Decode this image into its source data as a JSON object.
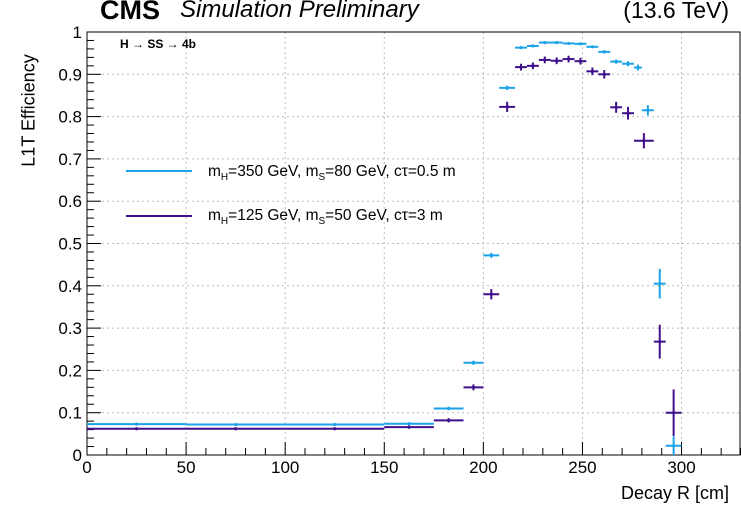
{
  "header": {
    "experiment": "CMS",
    "status": "Simulation Preliminary",
    "energy": "(13.6 TeV)",
    "process": "H → SS → 4b"
  },
  "legend": {
    "entry1": {
      "p1": "m",
      "s1": "H",
      "p2": "=350 GeV, m",
      "s2": "S",
      "p3": "=80 GeV, cτ=0.5 m"
    },
    "entry2": {
      "p1": "m",
      "s1": "H",
      "p2": "=125 GeV, m",
      "s2": "S",
      "p3": "=50 GeV, cτ=3 m"
    }
  },
  "colors": {
    "series1": "#1aa3e8",
    "series2": "#3f0f8c"
  },
  "chart_data": {
    "type": "scatter",
    "xlabel": "Decay R [cm]",
    "ylabel": "L1T Efficiency",
    "xlim": [
      0,
      330
    ],
    "ylim": [
      0,
      1
    ],
    "xticks": [
      0,
      50,
      100,
      150,
      200,
      250,
      300
    ],
    "yticks": [
      0,
      0.1,
      0.2,
      0.3,
      0.4,
      0.5,
      0.6,
      0.7,
      0.8,
      0.9,
      1
    ],
    "ytick_labels": [
      "0",
      "0.1",
      "0.2",
      "0.3",
      "0.4",
      "0.5",
      "0.6",
      "0.7",
      "0.8",
      "0.9",
      "1"
    ],
    "grid": true,
    "series": [
      {
        "points": [
          {
            "x0": 0,
            "x1": 50,
            "y": 0.073,
            "e": 0.003
          },
          {
            "x0": 50,
            "x1": 100,
            "y": 0.072,
            "e": 0.003
          },
          {
            "x0": 100,
            "x1": 150,
            "y": 0.072,
            "e": 0.003
          },
          {
            "x0": 150,
            "x1": 175,
            "y": 0.074,
            "e": 0.003
          },
          {
            "x0": 175,
            "x1": 190,
            "y": 0.11,
            "e": 0.004
          },
          {
            "x0": 190,
            "x1": 200,
            "y": 0.218,
            "e": 0.005
          },
          {
            "x0": 200,
            "x1": 208,
            "y": 0.472,
            "e": 0.006
          },
          {
            "x0": 208,
            "x1": 216,
            "y": 0.868,
            "e": 0.005
          },
          {
            "x0": 216,
            "x1": 222,
            "y": 0.963,
            "e": 0.003
          },
          {
            "x0": 222,
            "x1": 228,
            "y": 0.967,
            "e": 0.003
          },
          {
            "x0": 228,
            "x1": 234,
            "y": 0.975,
            "e": 0.003
          },
          {
            "x0": 234,
            "x1": 240,
            "y": 0.975,
            "e": 0.003
          },
          {
            "x0": 240,
            "x1": 246,
            "y": 0.973,
            "e": 0.003
          },
          {
            "x0": 246,
            "x1": 252,
            "y": 0.972,
            "e": 0.003
          },
          {
            "x0": 252,
            "x1": 258,
            "y": 0.965,
            "e": 0.003
          },
          {
            "x0": 258,
            "x1": 264,
            "y": 0.953,
            "e": 0.004
          },
          {
            "x0": 264,
            "x1": 270,
            "y": 0.93,
            "e": 0.005
          },
          {
            "x0": 270,
            "x1": 276,
            "y": 0.925,
            "e": 0.006
          },
          {
            "x0": 276,
            "x1": 280,
            "y": 0.916,
            "e": 0.007
          },
          {
            "x0": 280,
            "x1": 286,
            "y": 0.815,
            "e": 0.012
          },
          {
            "x0": 286,
            "x1": 292,
            "y": 0.405,
            "e": 0.035
          },
          {
            "x0": 292,
            "x1": 300,
            "y": 0.022,
            "e": 0.022
          }
        ]
      },
      {
        "points": [
          {
            "x0": 0,
            "x1": 50,
            "y": 0.062,
            "e": 0.003
          },
          {
            "x0": 50,
            "x1": 100,
            "y": 0.062,
            "e": 0.003
          },
          {
            "x0": 100,
            "x1": 150,
            "y": 0.062,
            "e": 0.003
          },
          {
            "x0": 150,
            "x1": 175,
            "y": 0.066,
            "e": 0.004
          },
          {
            "x0": 175,
            "x1": 190,
            "y": 0.082,
            "e": 0.005
          },
          {
            "x0": 190,
            "x1": 200,
            "y": 0.16,
            "e": 0.007
          },
          {
            "x0": 200,
            "x1": 208,
            "y": 0.38,
            "e": 0.012
          },
          {
            "x0": 208,
            "x1": 216,
            "y": 0.823,
            "e": 0.012
          },
          {
            "x0": 216,
            "x1": 222,
            "y": 0.917,
            "e": 0.008
          },
          {
            "x0": 222,
            "x1": 228,
            "y": 0.92,
            "e": 0.008
          },
          {
            "x0": 228,
            "x1": 234,
            "y": 0.934,
            "e": 0.008
          },
          {
            "x0": 234,
            "x1": 240,
            "y": 0.932,
            "e": 0.008
          },
          {
            "x0": 240,
            "x1": 246,
            "y": 0.936,
            "e": 0.008
          },
          {
            "x0": 246,
            "x1": 252,
            "y": 0.931,
            "e": 0.008
          },
          {
            "x0": 252,
            "x1": 258,
            "y": 0.907,
            "e": 0.009
          },
          {
            "x0": 258,
            "x1": 264,
            "y": 0.9,
            "e": 0.01
          },
          {
            "x0": 264,
            "x1": 270,
            "y": 0.822,
            "e": 0.013
          },
          {
            "x0": 270,
            "x1": 276,
            "y": 0.808,
            "e": 0.015
          },
          {
            "x0": 276,
            "x1": 286,
            "y": 0.743,
            "e": 0.018
          },
          {
            "x0": 286,
            "x1": 292,
            "y": 0.268,
            "e": 0.04
          },
          {
            "x0": 292,
            "x1": 300,
            "y": 0.1,
            "e": 0.055
          }
        ]
      }
    ]
  }
}
